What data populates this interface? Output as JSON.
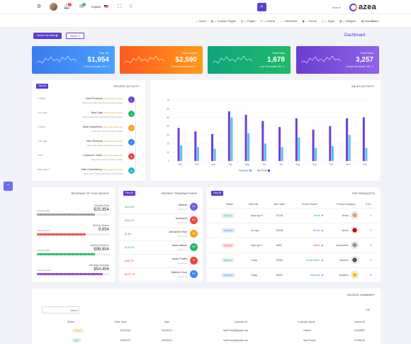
{
  "header": {
    "language": "English",
    "search_placeholder": "Search",
    "logo_text": "azea",
    "notify_count": "1",
    "message_count": "5"
  },
  "menu": [
    {
      "label": "Icons"
    },
    {
      "label": "Custom Pages"
    },
    {
      "label": "Pages"
    },
    {
      "label": "Charts"
    },
    {
      "label": "Elements"
    },
    {
      "label": "Forms"
    },
    {
      "label": "Apps"
    },
    {
      "label": "Widgets"
    },
    {
      "label": "Dashboard"
    }
  ],
  "page": {
    "title": "Dashboard",
    "search_by_date": "Search By Date",
    "import": "Import"
  },
  "stats": [
    {
      "title": "Total Tax",
      "value": "$1,954",
      "sub": "From Last Month",
      "pct": "10%",
      "color": "#3b82f6"
    },
    {
      "title": "Total Income",
      "value": "$2,590",
      "sub": "From Last Month",
      "pct": "61%",
      "color": "#ff6a1a"
    },
    {
      "title": "Total Stats",
      "value": "1,678",
      "sub": "Lose This Month",
      "pct": "15%",
      "color": "#16a37b"
    },
    {
      "title": "Total Sales",
      "value": "3,257",
      "sub": "Growth This Month",
      "pct": "13%",
      "color": "#7a4fd8"
    }
  ],
  "activity": {
    "title": "RECENT ACTIVITY",
    "view_all": "View All",
    "items": [
      {
        "time": "6:00pm",
        "title": "New Products,",
        "sub": "10% Profit increase",
        "desc": "More than 200+ new products were added",
        "num": "1",
        "color": "#6c3fd8"
      },
      {
        "time": "16hr ago",
        "title": "New Sale,",
        "sub": "75% Profit increase",
        "desc": "Satisfy customer's needs with 7/24 support",
        "num": "2",
        "color": "#1fba6b"
      },
      {
        "time": "2:00pm",
        "title": "New Customers,",
        "sub": "20% new customers",
        "desc": "1.2k new customers were added",
        "num": "3",
        "color": "#f7a41d"
      },
      {
        "time": "14hr ago",
        "title": "New Reviews,",
        "sub": "45% Profit increase",
        "desc": "More than 300 reviews were received",
        "num": "4",
        "color": "#3b82f6"
      },
      {
        "time": "4min",
        "title": "Customer Visits,",
        "sub": "10% target achieved",
        "desc": "More than 1.5k customers visited",
        "num": "5",
        "color": "#ef4444"
      },
      {
        "time": "days ago 3",
        "title": "Sale Consistency,",
        "sub": "80% target achieved",
        "desc": "More than 5 sales happening every week",
        "num": "6",
        "color": "#22b8cf"
      }
    ]
  },
  "sales_activity": {
    "title": "SALES ACTIVITY"
  },
  "chart_data": {
    "type": "bar",
    "title": "SALES ACTIVITY",
    "categories": [
      "Jan",
      "Feb",
      "Mar",
      "Apr",
      "May",
      "Jun",
      "Jul",
      "Aug",
      "Sep",
      "Oct",
      "Nov",
      "Dec"
    ],
    "series": [
      {
        "name": "Revenue",
        "color": "#5bc0f2",
        "values": [
          18,
          16,
          14,
          50,
          32,
          20,
          16,
          27,
          15,
          17,
          30,
          15
        ]
      },
      {
        "name": "Net Profit",
        "color": "#6c3fd8",
        "values": [
          38,
          34,
          31,
          57,
          53,
          46,
          39,
          49,
          36,
          40,
          49,
          50
        ]
      }
    ],
    "yticks": [
      0,
      10,
      20,
      30,
      40,
      50,
      60,
      70
    ],
    "ylim": [
      0,
      70
    ],
    "legend": "bottom"
  },
  "revenue": {
    "title": "REVENUE OF THIS MONTH",
    "items": [
      {
        "label": "Monthly Profit",
        "value": "$25,854",
        "pct_label": "Increase 80%",
        "pct": 0.8,
        "color": "#8e98a8"
      },
      {
        "label": "Monthly Orders",
        "value": "8,654",
        "pct_label": "Increase 67%",
        "pct": 0.67,
        "color": "#ef4444"
      },
      {
        "label": "Monthly Revenue",
        "value": "$98,654",
        "pct_label": "Increase 80%",
        "pct": 0.8,
        "color": "#1fba6b"
      },
      {
        "label": "Monthly Expenses",
        "value": "$54,456",
        "pct_label": "Increased 90%",
        "pct": 0.9,
        "color": "#8b3fd8"
      }
    ]
  },
  "transactions": {
    "title": "RECENT TRANSACTIONS",
    "view_all": "View All",
    "items": [
      {
        "amount": "$543.89+",
        "name": "Alberto",
        "sub": "Fl rest mv",
        "initials": "AL",
        "color": "#6c5ce7",
        "amount_color": "#1fba6b"
      },
      {
        "amount": "$534.67+",
        "name": "Normachi",
        "sub": "Fl rest mv",
        "initials": "NO",
        "color": "#ef4444",
        "amount_color": "#1fba6b"
      },
      {
        "amount": "$1.80-",
        "name": "Alexandra Kius",
        "sub": "Fl rest mv",
        "initials": "AK",
        "color": "#f7a41d",
        "amount_color": "#ef4444"
      },
      {
        "amount": "$193.45+",
        "name": "Isaac william",
        "sub": "Fl rest mv",
        "initials": "IW",
        "color": "#1fba6b",
        "amount_color": "#1fba6b"
      },
      {
        "amount": "$456.78-",
        "name": "Isaac Powell",
        "sub": "Fl rest mv",
        "initials": "IP",
        "color": "#ef4444",
        "amount_color": "#ef4444"
      },
      {
        "amount": "$1577.78-",
        "name": "Makino Chon",
        "sub": "Fl rest mv",
        "initials": "MC",
        "color": "#3b82f6",
        "amount_color": "#ef4444"
      }
    ]
  },
  "products": {
    "title": "TOP PRODUCTS",
    "view_all": "View All",
    "columns": [
      "Status",
      "Sale Info",
      "Sale Value",
      "Product Name",
      "Product Category",
      "S.No"
    ],
    "rows": [
      {
        "status": "Success",
        "status_bg": "#d7f3e3",
        "status_color": "#1fba6b",
        "info": "days ago 3",
        "value": "$1234",
        "name": "Boots",
        "dot": "#1fba6b",
        "category": "Books",
        "sno": "1",
        "img": "#c8a77c"
      },
      {
        "status": "Top Seller",
        "status_bg": "#dbe8fd",
        "status_color": "#3b82f6",
        "info": "1hr ago",
        "value": "$5436",
        "name": "Shoes",
        "dot": "#3b82f6",
        "category": "Sports",
        "sno": "2",
        "img": "#b31313"
      },
      {
        "status": "Outgoing",
        "status_bg": "#fde0e0",
        "status_color": "#ef4444",
        "info": "days ago 2",
        "value": "$580",
        "name": "Watch",
        "dot": "#ef4444",
        "category": "Accessories",
        "sno": "3",
        "img": "#999"
      },
      {
        "status": "Success",
        "status_bg": "#d7f3e3",
        "status_color": "#1fba6b",
        "info": "Today",
        "value": "$2342",
        "name": "Smart Watch",
        "dot": "#1fba6b",
        "category": "Watches",
        "sno": "4",
        "img": "#555"
      },
      {
        "status": "Top Seller",
        "status_bg": "#dbe8fd",
        "status_color": "#3b82f6",
        "info": "Today",
        "value": "$6427",
        "name": "Head set",
        "dot": "#3b82f6",
        "category": "speakers",
        "sno": "5",
        "img": "#f5c518"
      }
    ]
  },
  "invoice": {
    "title": "INVOICE SUMMARY",
    "add": "+ All",
    "search_placeholder": "Search",
    "columns": [
      "Status",
      "Order Value",
      "Date",
      "Customer ID",
      "Customer Name",
      "Invoice ID"
    ],
    "rows": [
      {
        "status": "Pending",
        "status_bg": "#fdf0d8",
        "status_color": "#e0a020",
        "value": "$230,540",
        "date": "08/3/2021",
        "id": "IsanPowell@gmail.com",
        "name": "Gabriel",
        "invoice": "00434987"
      },
      {
        "status": "Paid",
        "status_bg": "#d7f3e3",
        "status_color": "#1fba6b",
        "value": "$450,870",
        "date": "08/3/2021",
        "id": "IsanPowell@gmail.com",
        "name": "Isan Powell",
        "invoice": "00786415"
      }
    ]
  }
}
